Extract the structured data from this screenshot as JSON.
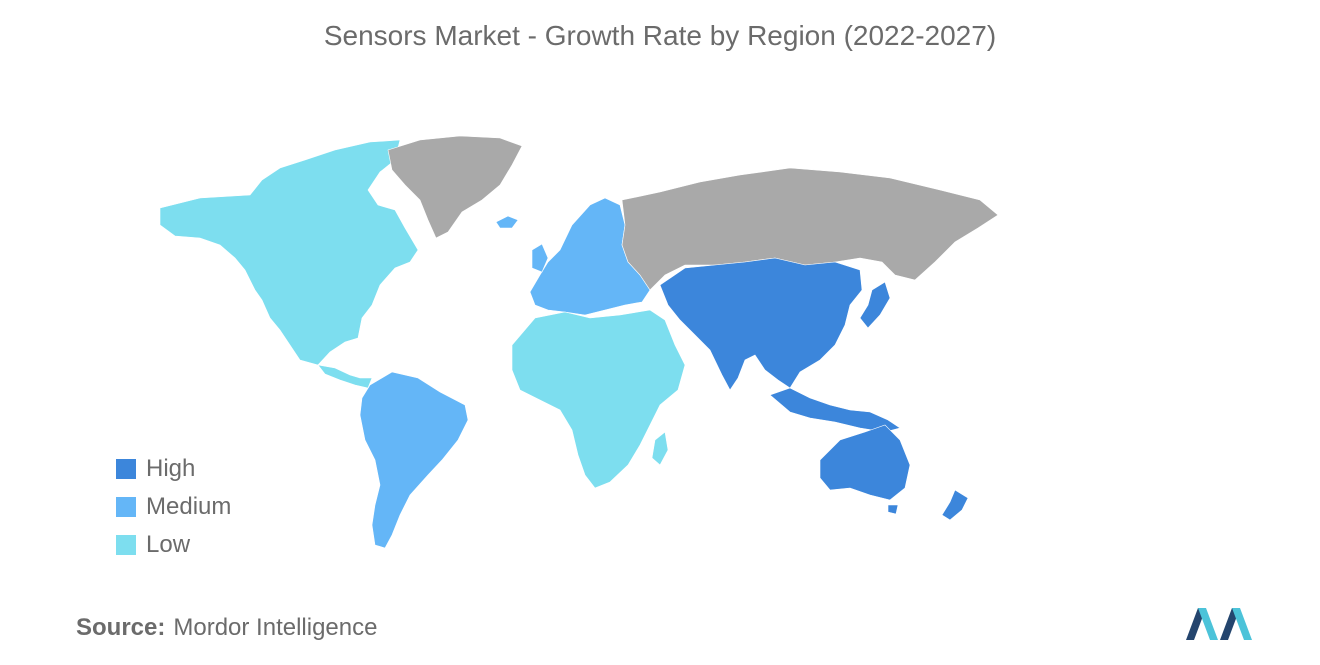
{
  "title": "Sensors Market - Growth Rate by Region (2022-2027)",
  "colors": {
    "high": "#3c86db",
    "medium": "#64b6f7",
    "low": "#7ddeef",
    "no_data": "#a9a9a9",
    "logo_dark": "#24456e",
    "logo_light": "#4cc3d9"
  },
  "legend": [
    {
      "label": "High",
      "color_key": "high"
    },
    {
      "label": "Medium",
      "color_key": "medium"
    },
    {
      "label": "Low",
      "color_key": "low"
    }
  ],
  "regions": {
    "north_america": "low",
    "greenland": "no_data",
    "south_america": "medium",
    "europe": "medium",
    "russia": "no_data",
    "middle_east_africa": "low",
    "asia_pacific": "high",
    "australia_nz": "high"
  },
  "source": {
    "label": "Source:",
    "value": "Mordor Intelligence"
  },
  "logo": {
    "name": "mordor-intelligence-logo-icon"
  }
}
